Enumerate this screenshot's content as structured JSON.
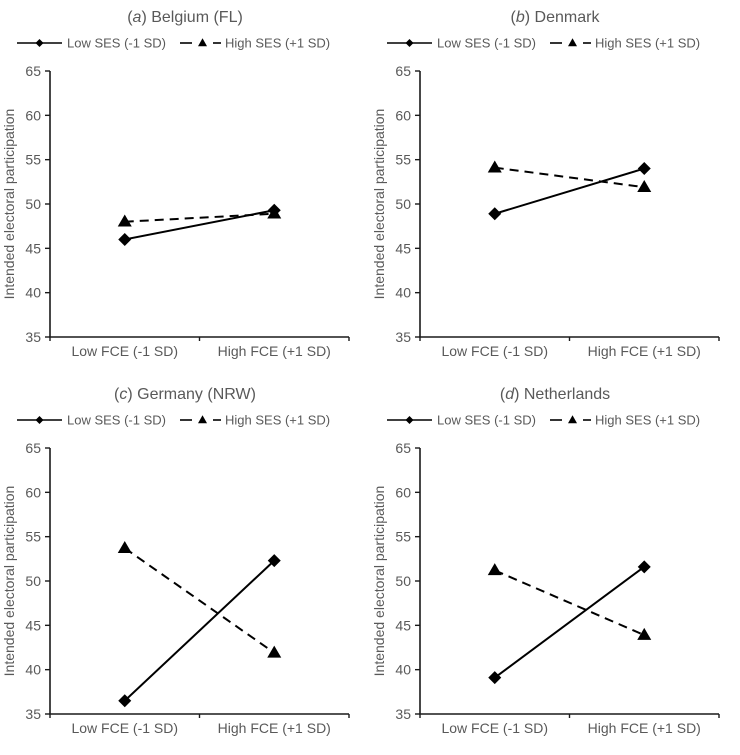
{
  "figure": {
    "text_color": "#595959",
    "data_color": "#000000",
    "axis_color": "#1a1a1a",
    "background": "#ffffff",
    "ylabel": "Intended electoral participation",
    "ylim": [
      35,
      65
    ],
    "yticks": [
      35,
      40,
      45,
      50,
      55,
      60,
      65
    ],
    "categories": [
      "Low FCE (-1 SD)",
      "High FCE (+1 SD)"
    ],
    "index_wrap": {
      "open": "(",
      "close": ") "
    },
    "legend": {
      "items": [
        {
          "label": "Low SES (-1 SD)",
          "marker": "diamond",
          "line": "solid"
        },
        {
          "label": "High SES (+1 SD)",
          "marker": "triangle",
          "line": "dashed"
        }
      ]
    }
  },
  "chart_data": [
    {
      "type": "line",
      "panel_index": "a",
      "title": "Belgium (FL)",
      "categories": [
        "Low FCE (-1 SD)",
        "High FCE (+1 SD)"
      ],
      "xlabel": "",
      "ylabel": "Intended electoral participation",
      "ylim": [
        35,
        65
      ],
      "yticks": [
        35,
        40,
        45,
        50,
        55,
        60,
        65
      ],
      "grid": false,
      "legend_position": "top",
      "series": [
        {
          "name": "Low SES (-1 SD)",
          "values": [
            46.0,
            49.3
          ],
          "line": "solid",
          "marker": "diamond",
          "color": "#000000"
        },
        {
          "name": "High SES (+1 SD)",
          "values": [
            48.0,
            48.9
          ],
          "line": "dashed",
          "marker": "triangle",
          "color": "#000000"
        }
      ]
    },
    {
      "type": "line",
      "panel_index": "b",
      "title": "Denmark",
      "categories": [
        "Low FCE (-1 SD)",
        "High FCE (+1 SD)"
      ],
      "xlabel": "",
      "ylabel": "Intended electoral participation",
      "ylim": [
        35,
        65
      ],
      "yticks": [
        35,
        40,
        45,
        50,
        55,
        60,
        65
      ],
      "grid": false,
      "legend_position": "top",
      "series": [
        {
          "name": "Low SES (-1 SD)",
          "values": [
            48.9,
            54.0
          ],
          "line": "solid",
          "marker": "diamond",
          "color": "#000000"
        },
        {
          "name": "High SES (+1 SD)",
          "values": [
            54.1,
            51.9
          ],
          "line": "dashed",
          "marker": "triangle",
          "color": "#000000"
        }
      ]
    },
    {
      "type": "line",
      "panel_index": "c",
      "title": "Germany (NRW)",
      "categories": [
        "Low FCE (-1 SD)",
        "High FCE (+1 SD)"
      ],
      "xlabel": "",
      "ylabel": "Intended electoral participation",
      "ylim": [
        35,
        65
      ],
      "yticks": [
        35,
        40,
        45,
        50,
        55,
        60,
        65
      ],
      "grid": false,
      "legend_position": "top",
      "series": [
        {
          "name": "Low SES (-1 SD)",
          "values": [
            36.5,
            52.3
          ],
          "line": "solid",
          "marker": "diamond",
          "color": "#000000"
        },
        {
          "name": "High SES (+1 SD)",
          "values": [
            53.7,
            41.9
          ],
          "line": "dashed",
          "marker": "triangle",
          "color": "#000000"
        }
      ]
    },
    {
      "type": "line",
      "panel_index": "d",
      "title": "Netherlands",
      "categories": [
        "Low FCE (-1 SD)",
        "High FCE (+1 SD)"
      ],
      "xlabel": "",
      "ylabel": "Intended electoral participation",
      "ylim": [
        35,
        65
      ],
      "yticks": [
        35,
        40,
        45,
        50,
        55,
        60,
        65
      ],
      "grid": false,
      "legend_position": "top",
      "series": [
        {
          "name": "Low SES (-1 SD)",
          "values": [
            39.1,
            51.6
          ],
          "line": "solid",
          "marker": "diamond",
          "color": "#000000"
        },
        {
          "name": "High SES (+1 SD)",
          "values": [
            51.2,
            43.9
          ],
          "line": "dashed",
          "marker": "triangle",
          "color": "#000000"
        }
      ]
    }
  ]
}
